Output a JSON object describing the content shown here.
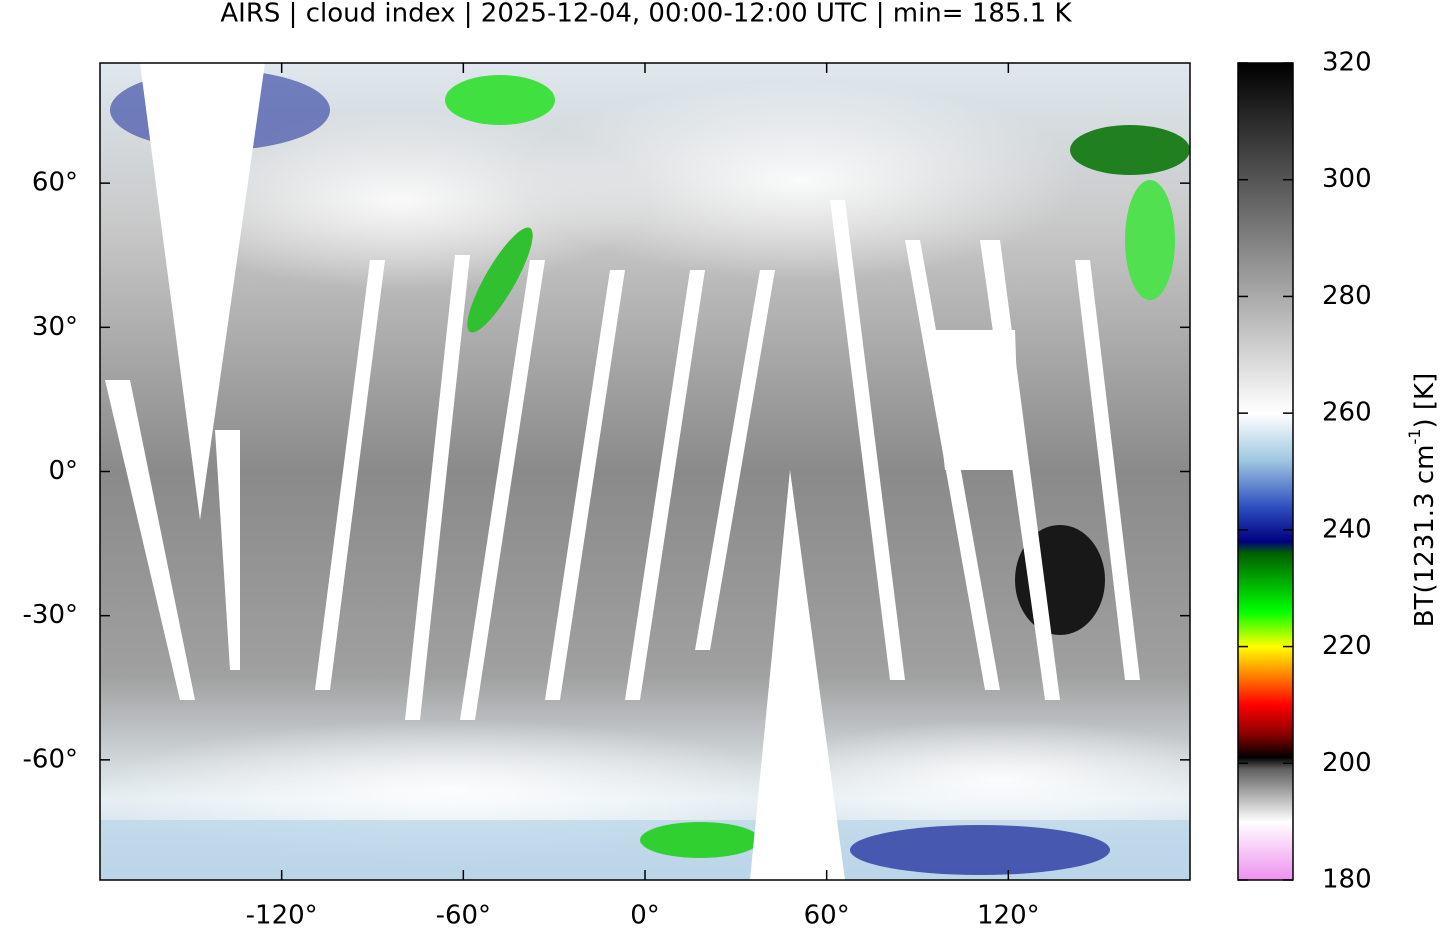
{
  "chart_data": {
    "type": "map",
    "title": "AIRS | cloud index | 2025-12-04, 00:00-12:00 UTC | min= 185.1 K",
    "xlim": [
      -180,
      180
    ],
    "ylim": [
      -85,
      85
    ],
    "xticks": [
      {
        "value": -120,
        "label": "-120°"
      },
      {
        "value": -60,
        "label": "-60°"
      },
      {
        "value": 0,
        "label": "0°"
      },
      {
        "value": 60,
        "label": "60°"
      },
      {
        "value": 120,
        "label": "120°"
      }
    ],
    "yticks": [
      {
        "value": -60,
        "label": "-60°"
      },
      {
        "value": -30,
        "label": "-30°"
      },
      {
        "value": 0,
        "label": "0°"
      },
      {
        "value": 30,
        "label": "30°"
      },
      {
        "value": 60,
        "label": "60°"
      }
    ],
    "colorbar": {
      "label_prefix": "BT(1231.3 cm",
      "label_exponent": "-1",
      "label_suffix": ") [K]",
      "lim": [
        180,
        320
      ],
      "ticks": [
        180,
        200,
        220,
        240,
        260,
        280,
        300,
        320
      ],
      "colormap": [
        {
          "value": 180,
          "color": "#ee90ee"
        },
        {
          "value": 190,
          "color": "#ffffff"
        },
        {
          "value": 199,
          "color": "#606060"
        },
        {
          "value": 201,
          "color": "#000000"
        },
        {
          "value": 205,
          "color": "#8b0000"
        },
        {
          "value": 210,
          "color": "#ff0000"
        },
        {
          "value": 215,
          "color": "#ff8000"
        },
        {
          "value": 220,
          "color": "#ffff00"
        },
        {
          "value": 226,
          "color": "#00ff00"
        },
        {
          "value": 236,
          "color": "#006000"
        },
        {
          "value": 238,
          "color": "#000080"
        },
        {
          "value": 244,
          "color": "#3050c0"
        },
        {
          "value": 252,
          "color": "#a0c8e0"
        },
        {
          "value": 260,
          "color": "#ffffff"
        },
        {
          "value": 320,
          "color": "#000000"
        }
      ]
    }
  }
}
